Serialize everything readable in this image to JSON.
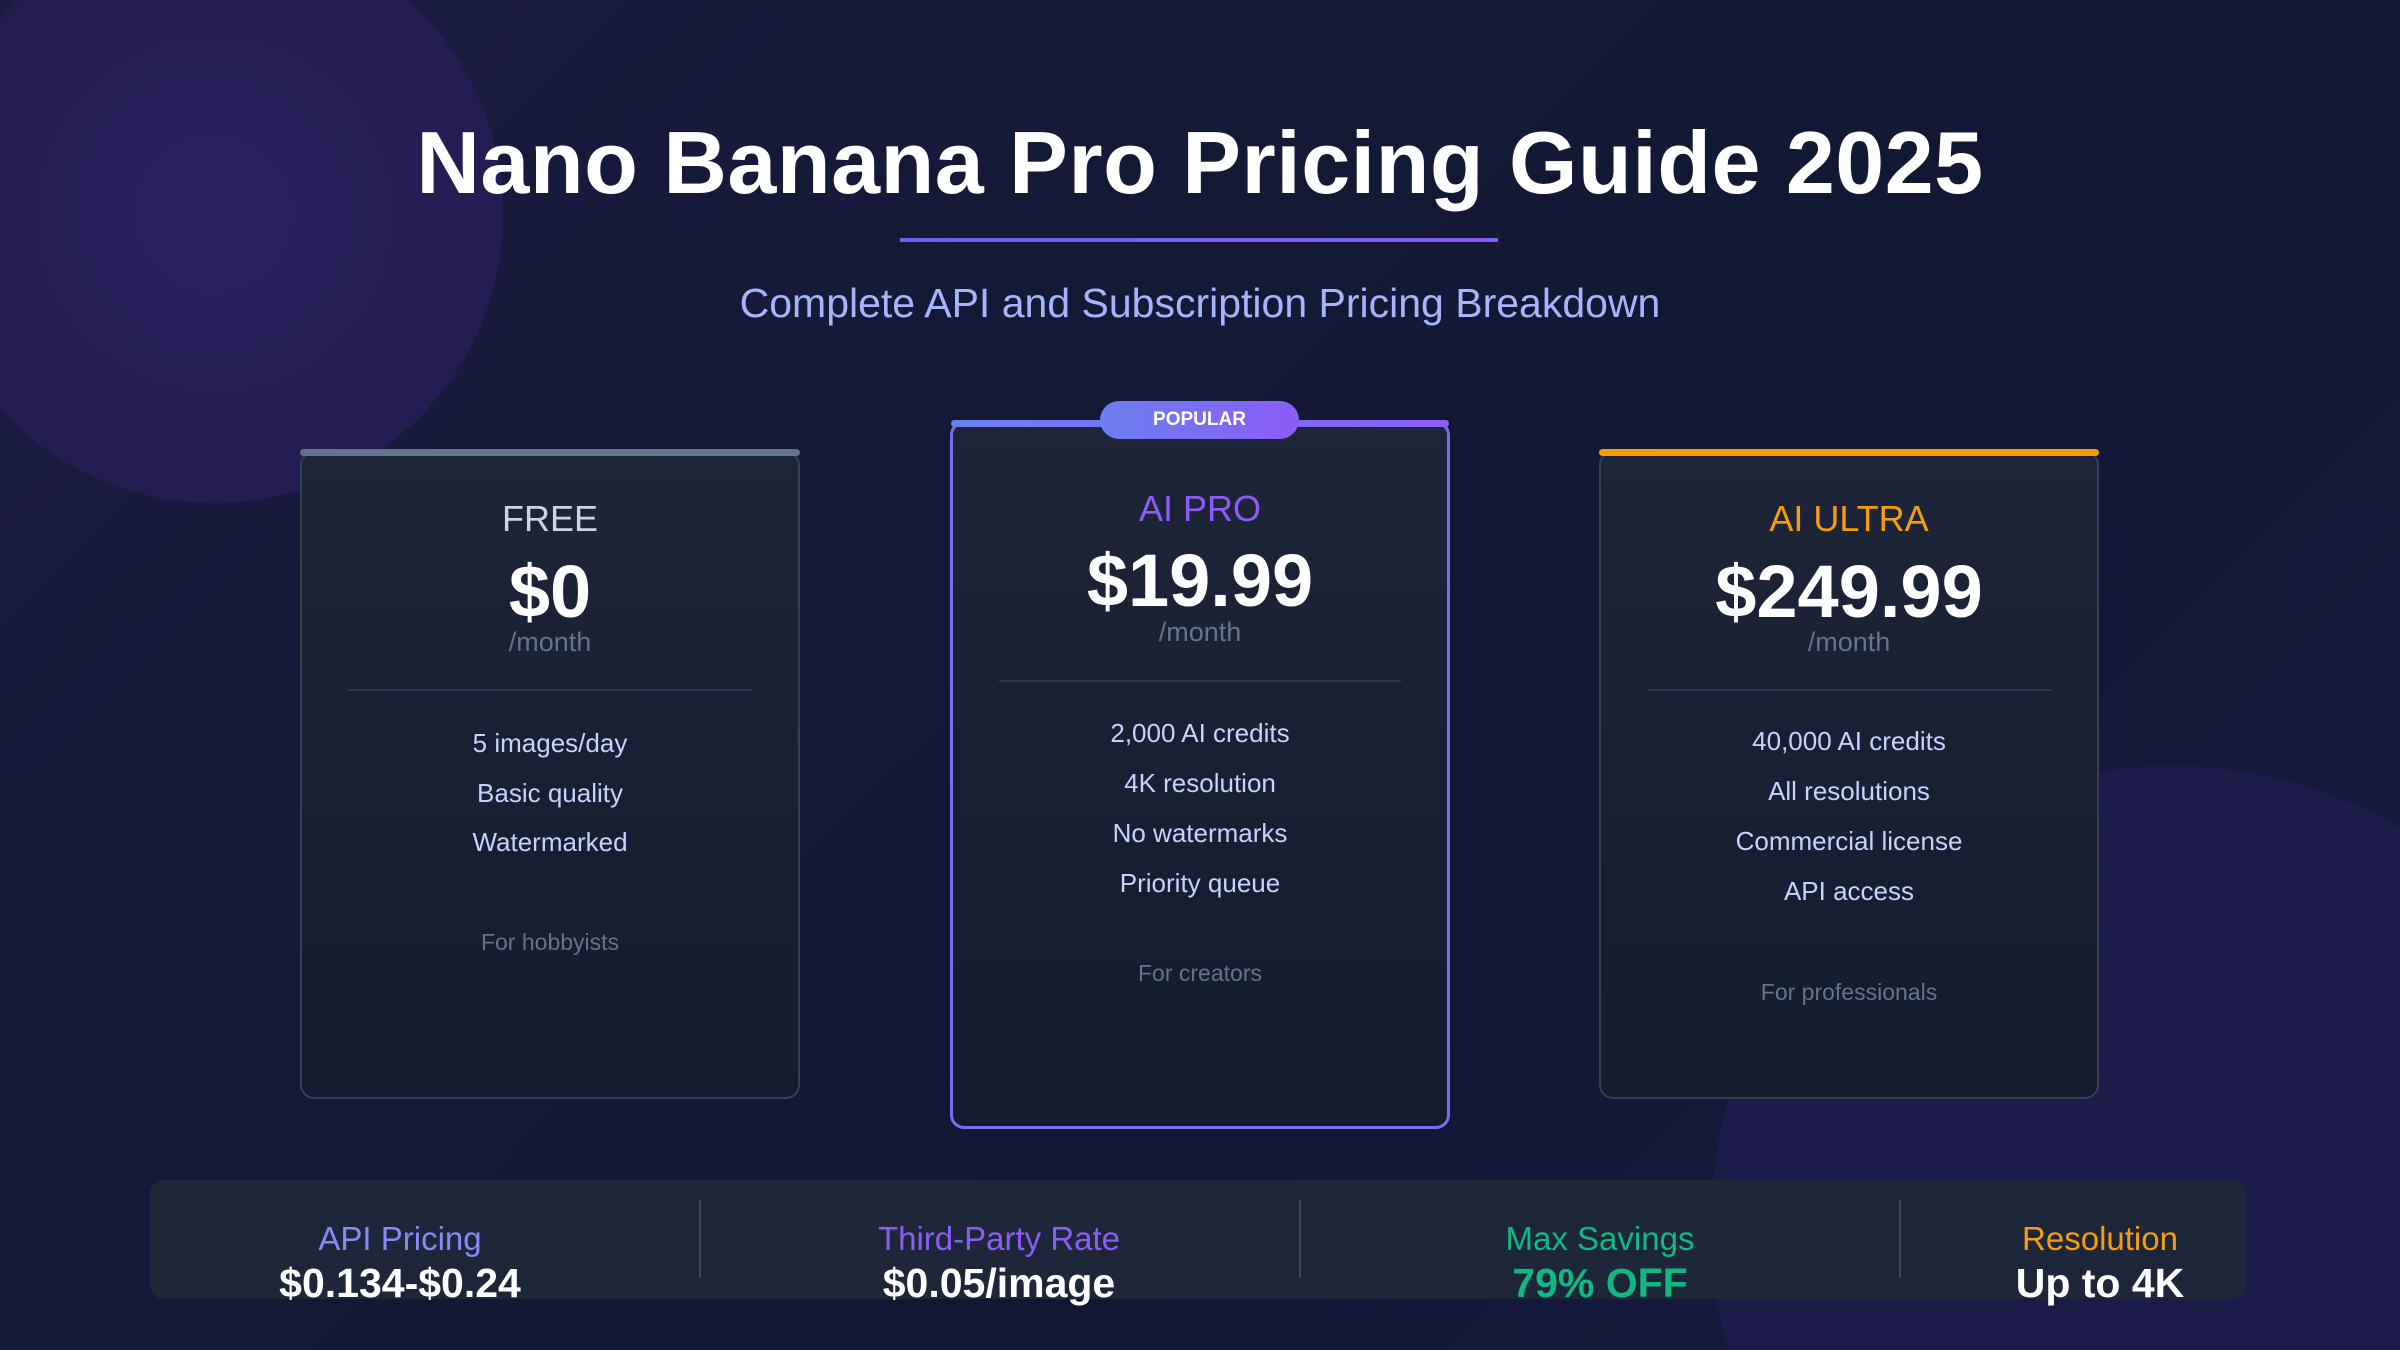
{
  "title": "Nano Banana Pro Pricing Guide 2025",
  "subtitle": "Complete API and Subscription Pricing Breakdown",
  "colors": {
    "accent": "#6366f1",
    "purple": "#8b5cf6",
    "green": "#10b981",
    "orange": "#f59e0b",
    "gray": "#64748b"
  },
  "plans": [
    {
      "name": "FREE",
      "price": "$0",
      "period": "/month",
      "features": [
        "5 images/day",
        "Basic quality",
        "Watermarked"
      ],
      "audience": "For hobbyists"
    },
    {
      "name": "AI PRO",
      "badge": "POPULAR",
      "price": "$19.99",
      "period": "/month",
      "features": [
        "2,000 AI credits",
        "4K resolution",
        "No watermarks",
        "Priority queue"
      ],
      "audience": "For creators"
    },
    {
      "name": "AI ULTRA",
      "price": "$249.99",
      "period": "/month",
      "features": [
        "40,000 AI credits",
        "All resolutions",
        "Commercial license",
        "API access"
      ],
      "audience": "For professionals"
    }
  ],
  "stats": [
    {
      "label": "API Pricing",
      "value": "$0.134-$0.24"
    },
    {
      "label": "Third-Party Rate",
      "value": "$0.05/image"
    },
    {
      "label": "Max Savings",
      "value": "79% OFF"
    },
    {
      "label": "Resolution",
      "value": "Up to 4K"
    }
  ]
}
